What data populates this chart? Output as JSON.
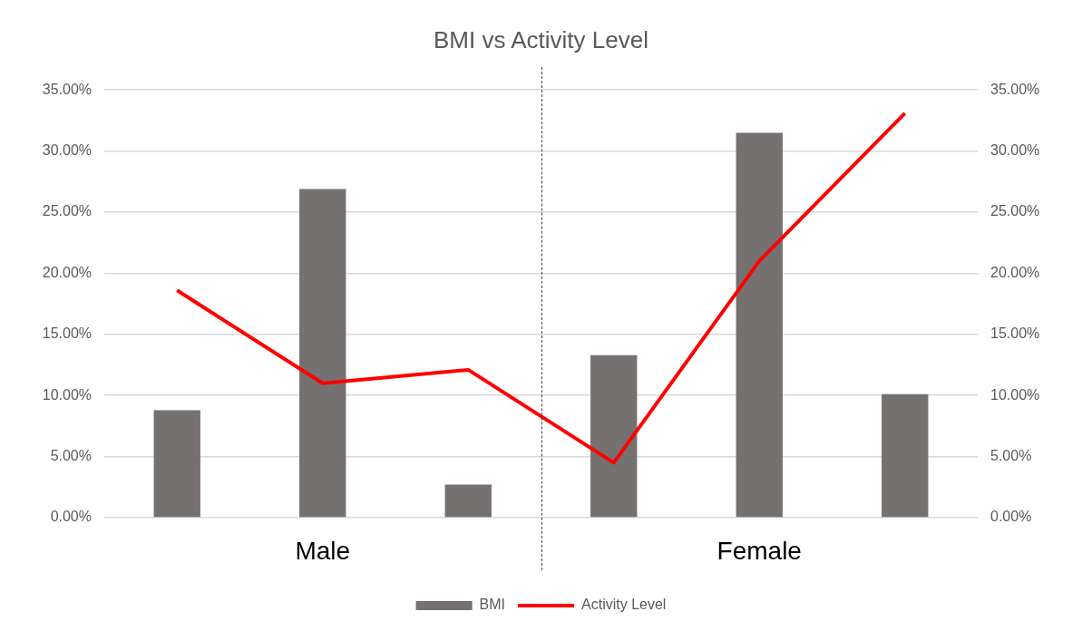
{
  "chart_data": {
    "type": "bar",
    "title": "BMI vs Activity Level",
    "categories": [
      null,
      null,
      null,
      null,
      null,
      null
    ],
    "series": [
      {
        "name": "BMI",
        "color": "#767171",
        "values": [
          8.8,
          26.9,
          2.7,
          13.3,
          31.5,
          10.1
        ]
      },
      {
        "name": "Activity Level",
        "type": "line",
        "axis": "y2",
        "color": "#ff0000",
        "marker": "none",
        "values": [
          18.6,
          11.0,
          12.1,
          4.5,
          21.0,
          33.1
        ]
      }
    ],
    "ylim": [
      0,
      35
    ],
    "yticks": [
      {
        "value": 0,
        "label": "0.00%"
      },
      {
        "value": 5,
        "label": "5.00%"
      },
      {
        "value": 10,
        "label": "10.00%"
      },
      {
        "value": 15,
        "label": "15.00%"
      },
      {
        "value": 20,
        "label": "20.00%"
      },
      {
        "value": 25,
        "label": "25.00%"
      },
      {
        "value": 30,
        "label": "30.00%"
      },
      {
        "value": 35,
        "label": "35.00%"
      }
    ],
    "y2lim": [
      0,
      35
    ],
    "y2ticks": [
      {
        "value": 0,
        "label": "0.00%"
      },
      {
        "value": 5,
        "label": "5.00%"
      },
      {
        "value": 10,
        "label": "10.00%"
      },
      {
        "value": 15,
        "label": "15.00%"
      },
      {
        "value": 20,
        "label": "20.00%"
      },
      {
        "value": 25,
        "label": "25.00%"
      },
      {
        "value": 30,
        "label": "30.00%"
      },
      {
        "value": 35,
        "label": "35.00%"
      }
    ],
    "annotations": [
      "Male",
      "Female"
    ],
    "grid": "y",
    "legend": "bottom"
  }
}
